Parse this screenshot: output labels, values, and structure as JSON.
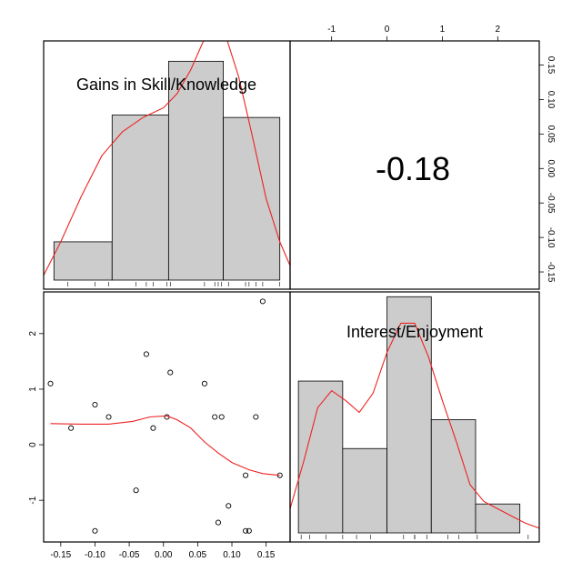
{
  "chart_data": {
    "type": "scatter-matrix",
    "variables": [
      "Gains in Skill/Knowledge",
      "Interest/Enjoyment"
    ],
    "correlation": "-0.18",
    "colors": {
      "fit_line": "#ee2222",
      "bar_fill": "#cccccc",
      "frame": "#000000"
    },
    "axes": {
      "var1": {
        "range": [
          -0.175,
          0.185
        ],
        "ticks": [
          -0.15,
          -0.1,
          -0.05,
          0.0,
          0.05,
          0.1,
          0.15
        ],
        "tick_labels": [
          "-0.15",
          "-0.10",
          "-0.05",
          "0.00",
          "0.05",
          "0.10",
          "0.15"
        ]
      },
      "var2": {
        "range": [
          -1.75,
          2.75
        ],
        "ticks": [
          -1,
          0,
          1,
          2
        ],
        "tick_labels": [
          "-1",
          "0",
          "1",
          "2"
        ]
      }
    },
    "histograms": {
      "var1": {
        "bin_edges": [
          -0.16,
          -0.075,
          0.0075,
          0.0875,
          0.17
        ],
        "heights": [
          0.16,
          0.69,
          0.915,
          0.68
        ],
        "rug": [
          -0.14,
          -0.1,
          -0.08,
          -0.04,
          -0.025,
          -0.015,
          0.005,
          0.01,
          0.06,
          0.075,
          0.08,
          0.085,
          0.095,
          0.12,
          0.125,
          0.135,
          0.145,
          0.17
        ],
        "density": [
          [
            -0.175,
            0.02
          ],
          [
            -0.15,
            0.16
          ],
          [
            -0.12,
            0.35
          ],
          [
            -0.09,
            0.52
          ],
          [
            -0.06,
            0.62
          ],
          [
            -0.03,
            0.68
          ],
          [
            0.0,
            0.72
          ],
          [
            0.02,
            0.78
          ],
          [
            0.04,
            0.88
          ],
          [
            0.06,
            1.01
          ],
          [
            0.075,
            1.07
          ],
          [
            0.09,
            1.03
          ],
          [
            0.11,
            0.85
          ],
          [
            0.13,
            0.6
          ],
          [
            0.15,
            0.34
          ],
          [
            0.17,
            0.16
          ],
          [
            0.185,
            0.06
          ]
        ]
      },
      "var2": {
        "bin_edges": [
          -1.6,
          -0.8,
          0.0,
          0.8,
          1.6,
          2.4
        ],
        "heights": [
          0.63,
          0.35,
          0.98,
          0.47,
          0.12
        ],
        "rug": [
          -1.55,
          -1.4,
          -1.1,
          -0.8,
          -0.55,
          -0.3,
          0.3,
          0.5,
          0.5,
          0.72,
          1.1,
          1.3,
          1.63,
          2.55
        ],
        "density": [
          [
            -1.75,
            0.1
          ],
          [
            -1.5,
            0.3
          ],
          [
            -1.25,
            0.52
          ],
          [
            -1.0,
            0.59
          ],
          [
            -0.75,
            0.55
          ],
          [
            -0.5,
            0.5
          ],
          [
            -0.25,
            0.58
          ],
          [
            0.0,
            0.75
          ],
          [
            0.25,
            0.87
          ],
          [
            0.5,
            0.87
          ],
          [
            0.75,
            0.73
          ],
          [
            1.0,
            0.55
          ],
          [
            1.25,
            0.38
          ],
          [
            1.5,
            0.2
          ],
          [
            1.75,
            0.13
          ],
          [
            2.0,
            0.1
          ],
          [
            2.25,
            0.07
          ],
          [
            2.5,
            0.04
          ],
          [
            2.75,
            0.02
          ]
        ]
      }
    },
    "scatter": {
      "points": [
        {
          "x": -0.165,
          "y": 1.1
        },
        {
          "x": -0.135,
          "y": 0.3
        },
        {
          "x": -0.1,
          "y": 0.72
        },
        {
          "x": -0.1,
          "y": -1.55
        },
        {
          "x": -0.08,
          "y": 0.5
        },
        {
          "x": -0.04,
          "y": -0.82
        },
        {
          "x": -0.025,
          "y": 1.63
        },
        {
          "x": -0.015,
          "y": 0.3
        },
        {
          "x": 0.005,
          "y": 0.5
        },
        {
          "x": 0.01,
          "y": 1.3
        },
        {
          "x": 0.06,
          "y": 1.1
        },
        {
          "x": 0.075,
          "y": 0.5
        },
        {
          "x": 0.08,
          "y": -1.4
        },
        {
          "x": 0.085,
          "y": 0.5
        },
        {
          "x": 0.095,
          "y": -1.1
        },
        {
          "x": 0.12,
          "y": -0.55
        },
        {
          "x": 0.12,
          "y": -1.55
        },
        {
          "x": 0.125,
          "y": -1.55
        },
        {
          "x": 0.135,
          "y": 0.5
        },
        {
          "x": 0.145,
          "y": 2.58
        },
        {
          "x": 0.17,
          "y": -0.55
        }
      ],
      "lowess": [
        [
          -0.165,
          0.38
        ],
        [
          -0.12,
          0.37
        ],
        [
          -0.08,
          0.37
        ],
        [
          -0.045,
          0.42
        ],
        [
          -0.02,
          0.5
        ],
        [
          0.005,
          0.52
        ],
        [
          0.02,
          0.45
        ],
        [
          0.04,
          0.3
        ],
        [
          0.06,
          0.05
        ],
        [
          0.08,
          -0.15
        ],
        [
          0.1,
          -0.32
        ],
        [
          0.125,
          -0.45
        ],
        [
          0.145,
          -0.52
        ],
        [
          0.17,
          -0.55
        ]
      ]
    }
  }
}
